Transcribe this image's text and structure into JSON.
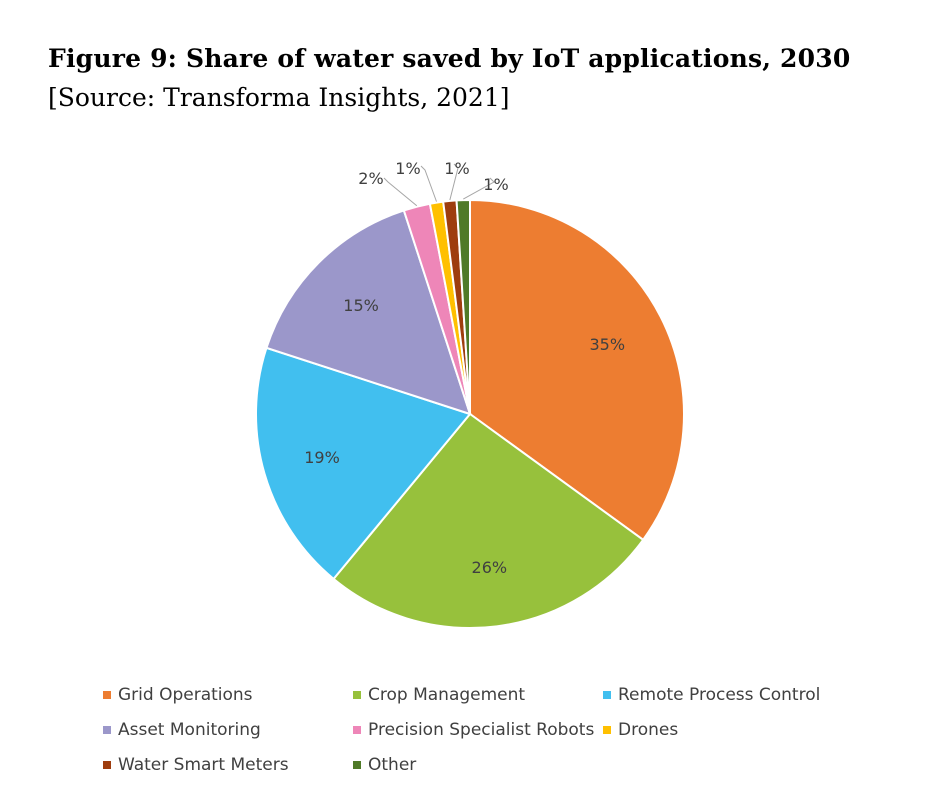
{
  "figure": {
    "title": "Figure 9: Share of water saved by IoT applications, 2030",
    "source": "[Source: Transforma Insights, 2021]"
  },
  "chart_data": {
    "type": "pie",
    "start_angle_deg": 0,
    "direction": "clockwise",
    "legend_position": "bottom",
    "slices": [
      {
        "name": "Grid Operations",
        "value": 35,
        "label": "35%",
        "color": "#ED7D31"
      },
      {
        "name": "Crop Management",
        "value": 26,
        "label": "26%",
        "color": "#97C13C"
      },
      {
        "name": "Remote Process Control",
        "value": 19,
        "label": "19%",
        "color": "#41BFEF"
      },
      {
        "name": "Asset Monitoring",
        "value": 15,
        "label": "15%",
        "color": "#9B97CA"
      },
      {
        "name": "Precision Specialist Robots",
        "value": 2,
        "label": "2%",
        "color": "#EE86B8"
      },
      {
        "name": "Drones",
        "value": 1,
        "label": "1%",
        "color": "#FFC000"
      },
      {
        "name": "Water Smart Meters",
        "value": 1,
        "label": "1%",
        "color": "#9E3D0E"
      },
      {
        "name": "Other",
        "value": 1,
        "label": "1%",
        "color": "#4F7A28"
      }
    ]
  }
}
